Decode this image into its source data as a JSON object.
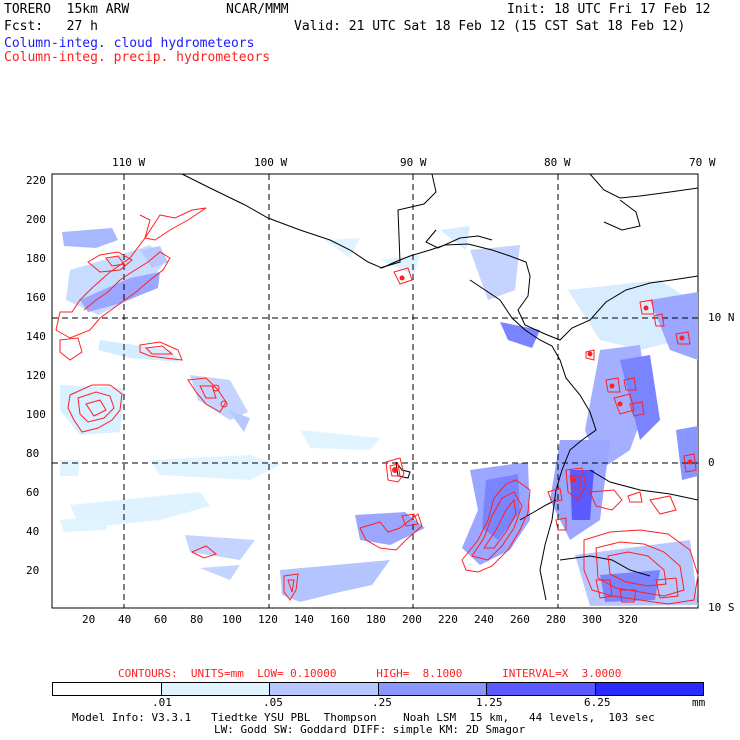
{
  "header": {
    "model": "TORERO  15km ARW",
    "org": "NCAR/MMM",
    "init": "Init: 18 UTC Fri 17 Feb 12",
    "fcst": "Fcst:   27 h",
    "valid": "Valid: 21 UTC Sat 18 Feb 12 (15 CST Sat 18 Feb 12)",
    "field1": "Column-integ. cloud hydrometeors",
    "field2": "Column-integ. precip. hydrometeors"
  },
  "colors": {
    "cloud_field": "#1a1aff",
    "precip_field": "#ff2020",
    "shade_1": "#e0f4ff",
    "shade_2": "#b8c8ff",
    "shade_3": "#8a96ff",
    "shade_4": "#5a5aff",
    "shade_5": "#2a2aff",
    "shade_6": "#0000ee"
  },
  "map": {
    "lon_labels": [
      "110 W",
      "100 W",
      "90 W",
      "80 W",
      "70 W"
    ],
    "lat_labels": [
      "10 N",
      "0",
      "10 S"
    ],
    "y_ticks": [
      "220",
      "200",
      "180",
      "160",
      "140",
      "120",
      "100",
      "80",
      "60",
      "40",
      "20"
    ],
    "x_ticks": [
      "20",
      "40",
      "60",
      "80",
      "100",
      "120",
      "140",
      "160",
      "180",
      "200",
      "220",
      "240",
      "260",
      "280",
      "300",
      "320"
    ]
  },
  "contours_info": "CONTOURS:  UNITS=mm  LOW= 0.10000      HIGH=  8.1000      INTERVAL=X  3.0000",
  "colorbar": {
    "labels": [
      ".01",
      ".05",
      ".25",
      "1.25",
      "6.25"
    ],
    "unit": "mm"
  },
  "footer": {
    "line1": "Model Info: V3.3.1   Tiedtke YSU PBL  Thompson    Noah LSM  15 km,   44 levels,  103 sec",
    "line2": "LW: Godd SW: Goddard DIFF: simple KM: 2D Smagor"
  }
}
